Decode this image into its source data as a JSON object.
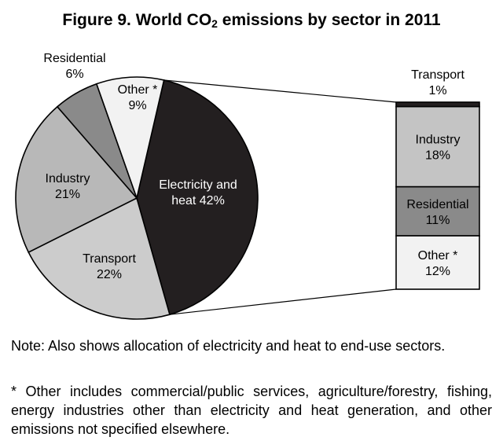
{
  "title": {
    "prefix": "Figure 9. World CO",
    "subscript": "2",
    "suffix": " emissions by sector in 2011"
  },
  "chart_data": [
    {
      "type": "pie",
      "title": "Figure 9. World CO2 emissions by sector in 2011",
      "slices": [
        {
          "label": "Electricity and heat",
          "value": 42,
          "display": "42%",
          "color": "#231f20"
        },
        {
          "label": "Transport",
          "value": 22,
          "display": "22%",
          "color": "#cccccc"
        },
        {
          "label": "Industry",
          "value": 21,
          "display": "21%",
          "color": "#b8b8b8"
        },
        {
          "label": "Residential",
          "value": 6,
          "display": "6%",
          "color": "#8a8a8a"
        },
        {
          "label": "Other *",
          "value": 9,
          "display": "9%",
          "color": "#f2f2f2"
        }
      ]
    },
    {
      "type": "bar",
      "stacked": true,
      "description_source": "Electricity and heat 42%",
      "segments": [
        {
          "label": "Transport",
          "value": 1,
          "display": "1%",
          "color": "#231f20"
        },
        {
          "label": "Industry",
          "value": 18,
          "display": "18%",
          "color": "#c4c4c4"
        },
        {
          "label": "Residential",
          "value": 11,
          "display": "11%",
          "color": "#8a8a8a"
        },
        {
          "label": "Other *",
          "value": 12,
          "display": "12%",
          "color": "#f2f2f2"
        }
      ]
    }
  ],
  "notes": {
    "note": "Note: Also shows allocation of electricity and heat to end-use sectors.",
    "footnote": "* Other includes commercial/public services, agriculture/forestry, fishing, energy industries other than electricity and heat generation, and other emissions not specified elsewhere."
  }
}
